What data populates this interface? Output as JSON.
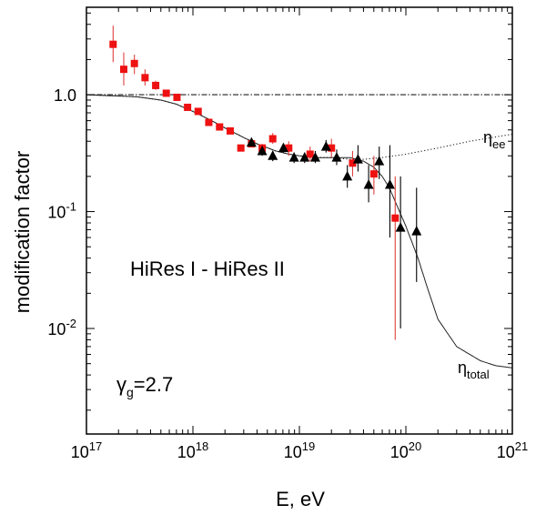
{
  "chart_data": {
    "type": "scatter",
    "title": "",
    "xlabel": "E, eV",
    "ylabel": "modification factor",
    "xscale": "log",
    "yscale": "log",
    "xlim": [
      1e+17,
      1e+21
    ],
    "ylim": [
      0.00125,
      5.6
    ],
    "grid": false,
    "x_ticks": [
      {
        "value": 1e+17,
        "base": "10",
        "exp": "17"
      },
      {
        "value": 1e+18,
        "base": "10",
        "exp": "18"
      },
      {
        "value": 1e+19,
        "base": "10",
        "exp": "19"
      },
      {
        "value": 1e+20,
        "base": "10",
        "exp": "20"
      },
      {
        "value": 1e+21,
        "base": "10",
        "exp": "21"
      }
    ],
    "y_ticks": [
      {
        "value": 1.0,
        "base": "1.0",
        "exp": ""
      },
      {
        "value": 0.1,
        "base": "10",
        "exp": "-1"
      },
      {
        "value": 0.01,
        "base": "10",
        "exp": "-2"
      }
    ],
    "annotations": {
      "dataset": "HiRes I - HiRes II",
      "gamma_symbol": "γ",
      "gamma_sub": "g",
      "gamma_value": "=2.7",
      "eta_ee_symbol": "η",
      "eta_ee_sub": "ee",
      "eta_total_symbol": "η",
      "eta_total_sub": "total"
    },
    "series": [
      {
        "name": "HiRes I",
        "marker": "square",
        "color": "#ee1111",
        "points": [
          {
            "x": 1.78e+17,
            "y": 2.7,
            "ylo": 1.9,
            "yhi": 3.9
          },
          {
            "x": 2.24e+17,
            "y": 1.65,
            "ylo": 1.2,
            "yhi": 2.3
          },
          {
            "x": 2.82e+17,
            "y": 1.85,
            "ylo": 1.5,
            "yhi": 2.2
          },
          {
            "x": 3.55e+17,
            "y": 1.4,
            "ylo": 1.2,
            "yhi": 1.65
          },
          {
            "x": 4.47e+17,
            "y": 1.2,
            "ylo": 1.1,
            "yhi": 1.32
          },
          {
            "x": 5.62e+17,
            "y": 1.03,
            "ylo": 0.96,
            "yhi": 1.1
          },
          {
            "x": 7.08e+17,
            "y": 0.95,
            "ylo": 0.9,
            "yhi": 1.0
          },
          {
            "x": 8.91e+17,
            "y": 0.78,
            "ylo": 0.75,
            "yhi": 0.82
          },
          {
            "x": 1.12e+18,
            "y": 0.72,
            "ylo": 0.69,
            "yhi": 0.75
          },
          {
            "x": 1.41e+18,
            "y": 0.58,
            "ylo": 0.56,
            "yhi": 0.6
          },
          {
            "x": 1.78e+18,
            "y": 0.53,
            "ylo": 0.51,
            "yhi": 0.55
          },
          {
            "x": 2.24e+18,
            "y": 0.49,
            "ylo": 0.47,
            "yhi": 0.51
          },
          {
            "x": 2.82e+18,
            "y": 0.35,
            "ylo": 0.33,
            "yhi": 0.37
          },
          {
            "x": 3.55e+18,
            "y": 0.38,
            "ylo": 0.36,
            "yhi": 0.41
          },
          {
            "x": 4.47e+18,
            "y": 0.35,
            "ylo": 0.32,
            "yhi": 0.38
          },
          {
            "x": 5.62e+18,
            "y": 0.42,
            "ylo": 0.38,
            "yhi": 0.47
          },
          {
            "x": 7.94e+18,
            "y": 0.35,
            "ylo": 0.3,
            "yhi": 0.4
          },
          {
            "x": 1.26e+19,
            "y": 0.31,
            "ylo": 0.27,
            "yhi": 0.36
          },
          {
            "x": 2e+19,
            "y": 0.35,
            "ylo": 0.29,
            "yhi": 0.42
          },
          {
            "x": 3.16e+19,
            "y": 0.26,
            "ylo": 0.2,
            "yhi": 0.33
          },
          {
            "x": 5.01e+19,
            "y": 0.21,
            "ylo": 0.14,
            "yhi": 0.3
          },
          {
            "x": 7.94e+19,
            "y": 0.088,
            "ylo": 0.008,
            "yhi": 0.2
          }
        ]
      },
      {
        "name": "HiRes II",
        "marker": "triangle",
        "color": "#000000",
        "points": [
          {
            "x": 3.55e+18,
            "y": 0.39,
            "ylo": 0.36,
            "yhi": 0.42
          },
          {
            "x": 4.47e+18,
            "y": 0.33,
            "ylo": 0.3,
            "yhi": 0.36
          },
          {
            "x": 5.62e+18,
            "y": 0.3,
            "ylo": 0.27,
            "yhi": 0.33
          },
          {
            "x": 7.08e+18,
            "y": 0.35,
            "ylo": 0.32,
            "yhi": 0.38
          },
          {
            "x": 8.91e+18,
            "y": 0.29,
            "ylo": 0.26,
            "yhi": 0.32
          },
          {
            "x": 1.12e+19,
            "y": 0.29,
            "ylo": 0.26,
            "yhi": 0.32
          },
          {
            "x": 1.41e+19,
            "y": 0.29,
            "ylo": 0.26,
            "yhi": 0.33
          },
          {
            "x": 1.78e+19,
            "y": 0.36,
            "ylo": 0.32,
            "yhi": 0.41
          },
          {
            "x": 2.24e+19,
            "y": 0.29,
            "ylo": 0.25,
            "yhi": 0.34
          },
          {
            "x": 2.82e+19,
            "y": 0.2,
            "ylo": 0.16,
            "yhi": 0.25
          },
          {
            "x": 3.55e+19,
            "y": 0.28,
            "ylo": 0.22,
            "yhi": 0.37
          },
          {
            "x": 4.47e+19,
            "y": 0.17,
            "ylo": 0.12,
            "yhi": 0.25
          },
          {
            "x": 5.62e+19,
            "y": 0.27,
            "ylo": 0.19,
            "yhi": 0.36
          },
          {
            "x": 7.08e+19,
            "y": 0.17,
            "ylo": 0.06,
            "yhi": 0.37
          },
          {
            "x": 8.91e+19,
            "y": 0.073,
            "ylo": 0.01,
            "yhi": 0.2
          },
          {
            "x": 1.26e+20,
            "y": 0.068,
            "ylo": 0.025,
            "yhi": 0.16
          }
        ]
      }
    ],
    "curves": [
      {
        "name": "η_total",
        "style": "solid",
        "x": [
          1e+17,
          3e+17,
          5e+17,
          7e+17,
          1e+18,
          1.5e+18,
          2e+18,
          3e+18,
          4e+18,
          6e+18,
          8e+18,
          1e+19,
          1.5e+19,
          2e+19,
          3e+19,
          4e+19,
          5e+19,
          6e+19,
          7e+19,
          8e+19,
          1e+20,
          1.3e+20,
          1.6e+20,
          2e+20,
          3e+20,
          5e+20,
          7e+20,
          1e+21
        ],
        "y": [
          1.0,
          0.96,
          0.9,
          0.83,
          0.72,
          0.6,
          0.52,
          0.43,
          0.38,
          0.33,
          0.31,
          0.3,
          0.29,
          0.29,
          0.29,
          0.27,
          0.24,
          0.2,
          0.16,
          0.12,
          0.075,
          0.04,
          0.022,
          0.012,
          0.007,
          0.0053,
          0.0048,
          0.0046
        ]
      },
      {
        "name": "η_ee",
        "style": "dotted",
        "x": [
          1e+17,
          3e+17,
          5e+17,
          7e+17,
          1e+18,
          1.5e+18,
          2e+18,
          3e+18,
          4e+18,
          6e+18,
          8e+18,
          1e+19,
          1.5e+19,
          2e+19,
          3e+19,
          4e+19,
          6e+19,
          1e+20,
          2e+20,
          4e+20,
          1e+21
        ],
        "y": [
          1.0,
          0.96,
          0.9,
          0.83,
          0.72,
          0.6,
          0.52,
          0.43,
          0.38,
          0.33,
          0.31,
          0.3,
          0.29,
          0.29,
          0.28,
          0.28,
          0.29,
          0.31,
          0.35,
          0.4,
          0.46
        ]
      },
      {
        "name": "unity",
        "style": "dashdot",
        "x": [
          1e+17,
          1e+21
        ],
        "y": [
          1.0,
          1.0
        ]
      }
    ]
  }
}
